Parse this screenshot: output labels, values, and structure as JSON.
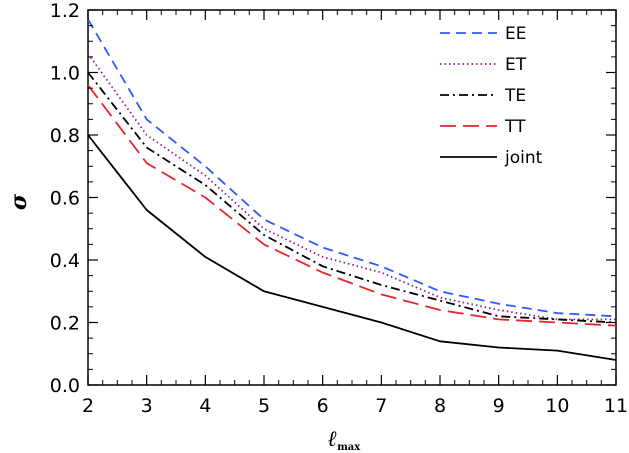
{
  "chart_data": {
    "type": "line",
    "xlabel": "ℓ",
    "xlabel_subscript": "max",
    "ylabel": "σ",
    "xlim": [
      2,
      11
    ],
    "ylim": [
      0.0,
      1.2
    ],
    "x_ticks": [
      "2",
      "3",
      "4",
      "5",
      "6",
      "7",
      "8",
      "9",
      "10",
      "11"
    ],
    "y_ticks": [
      "0.0",
      "0.2",
      "0.4",
      "0.6",
      "0.8",
      "1.0",
      "1.2"
    ],
    "x": [
      2,
      3,
      4,
      5,
      6,
      7,
      8,
      9,
      10,
      11
    ],
    "grid": false,
    "legend_position": "top-right",
    "series": [
      {
        "name": "EE",
        "color": "#2b5bff",
        "dash": "dashed",
        "values": [
          1.17,
          0.85,
          0.7,
          0.53,
          0.44,
          0.38,
          0.3,
          0.26,
          0.23,
          0.22
        ]
      },
      {
        "name": "ET",
        "color": "#8a1e8a",
        "dash": "dotted",
        "values": [
          1.06,
          0.8,
          0.67,
          0.5,
          0.41,
          0.36,
          0.28,
          0.24,
          0.21,
          0.21
        ]
      },
      {
        "name": "TE",
        "color": "#000000",
        "dash": "dashdot",
        "values": [
          1.0,
          0.76,
          0.64,
          0.48,
          0.38,
          0.32,
          0.27,
          0.22,
          0.21,
          0.2
        ]
      },
      {
        "name": "TT",
        "color": "#e8252b",
        "dash": "longdash",
        "values": [
          0.96,
          0.71,
          0.6,
          0.45,
          0.36,
          0.29,
          0.24,
          0.21,
          0.2,
          0.19
        ]
      },
      {
        "name": "joint",
        "color": "#000000",
        "dash": "solid",
        "values": [
          0.8,
          0.56,
          0.41,
          0.3,
          0.25,
          0.2,
          0.14,
          0.12,
          0.11,
          0.08
        ]
      }
    ]
  }
}
